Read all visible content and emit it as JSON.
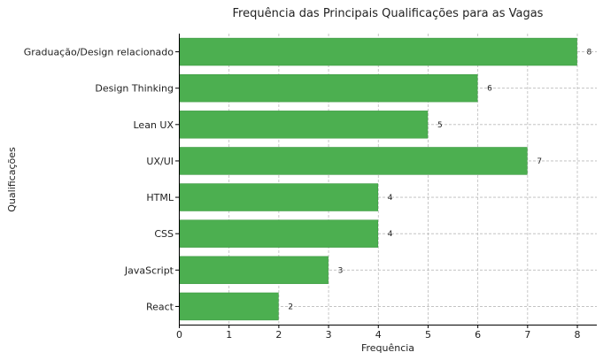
{
  "chart_data": {
    "type": "bar",
    "orientation": "horizontal",
    "title": "Frequência das Principais Qualificações para as Vagas",
    "xlabel": "Frequência",
    "ylabel": "Qualificações",
    "categories": [
      "Graduação/Design relacionado",
      "Design Thinking",
      "Lean UX",
      "UX/UI",
      "HTML",
      "CSS",
      "JavaScript",
      "React"
    ],
    "values": [
      8,
      6,
      5,
      7,
      4,
      4,
      3,
      2
    ],
    "xlim": [
      0,
      8.4
    ],
    "xticks": [
      0,
      1,
      2,
      3,
      4,
      5,
      6,
      7,
      8
    ],
    "grid": true,
    "bar_color": "#4caf50",
    "bar_edge_color": "#3e9a43"
  }
}
